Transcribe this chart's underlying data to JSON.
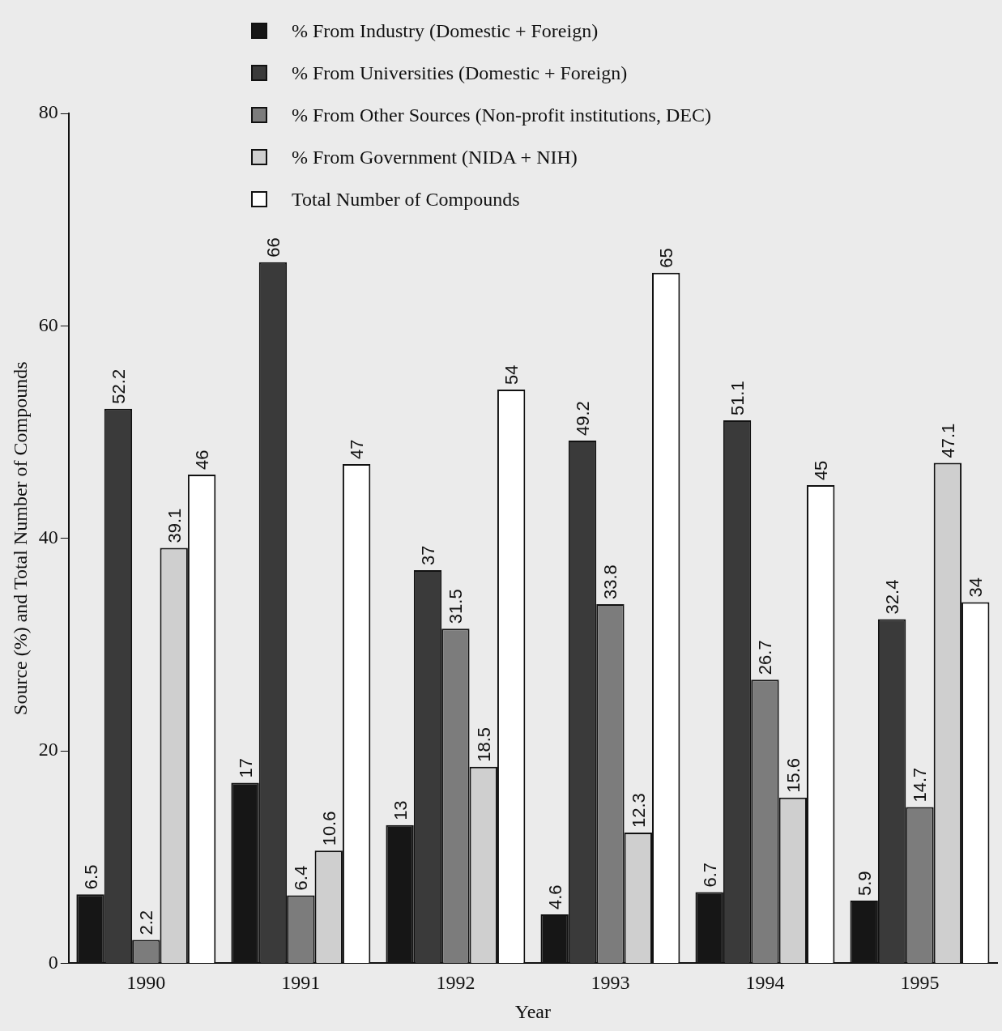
{
  "chart_data": {
    "type": "bar",
    "xlabel": "Year",
    "ylabel": "Source (%) and Total Number of Compounds",
    "categories": [
      "1990",
      "1991",
      "1992",
      "1993",
      "1994",
      "1995"
    ],
    "series": [
      {
        "name": "% From Industry (Domestic + Foreign)",
        "color": "#161616",
        "values": [
          6.5,
          17,
          13,
          4.6,
          6.7,
          5.9
        ]
      },
      {
        "name": "% From Universities (Domestic + Foreign)",
        "color": "#3a3a3a",
        "values": [
          52.2,
          66,
          37,
          49.2,
          51.1,
          32.4
        ]
      },
      {
        "name": "% From Other Sources (Non-profit institutions, DEC)",
        "color": "#7c7c7c",
        "values": [
          2.2,
          6.4,
          31.5,
          33.8,
          26.7,
          14.7
        ]
      },
      {
        "name": "% From Government (NIDA + NIH)",
        "color": "#cfcfcf",
        "values": [
          39.1,
          10.6,
          18.5,
          12.3,
          15.6,
          47.1
        ]
      },
      {
        "name": "Total Number of Compounds",
        "color": "#ffffff",
        "values": [
          46,
          47,
          54,
          65,
          45,
          34
        ]
      }
    ],
    "ylim": [
      0,
      80
    ],
    "yticks": [
      0,
      20,
      40,
      60,
      80
    ],
    "grid": false,
    "legend": "top",
    "data_labels": true
  }
}
